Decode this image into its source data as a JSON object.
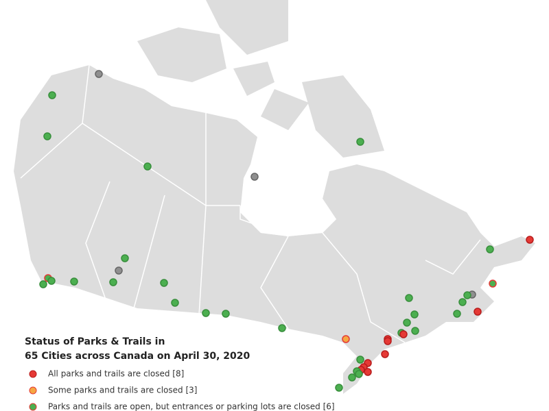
{
  "legend": {
    "title": [
      "Status of Parks & Trails in",
      "65 Cities across Canada on April 30, 2020"
    ],
    "items": [
      "All parks and trails are closed [8]",
      "Some parks and trails are closed [3]",
      "Parks and trails are open, but entrances or parking lots are closed [6]"
    ]
  }
}
